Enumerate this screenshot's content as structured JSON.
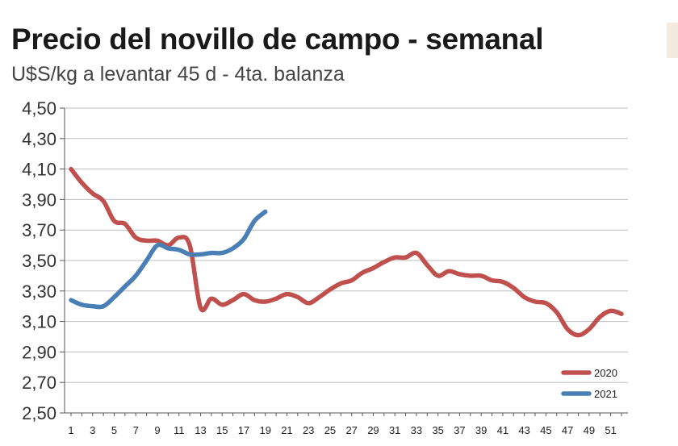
{
  "title": "Precio del novillo de campo - semanal",
  "subtitle": "U$S/kg a levantar 45 d - 4ta. balanza",
  "chart_data": {
    "type": "line",
    "title": "Precio del novillo de campo - semanal",
    "subtitle": "U$S/kg a levantar 45 d - 4ta. balanza",
    "xlabel": "",
    "ylabel": "",
    "ylim": [
      2.5,
      4.5
    ],
    "y_ticks": [
      "4,50",
      "4,30",
      "4,10",
      "3,90",
      "3,70",
      "3,50",
      "3,30",
      "3,10",
      "2,90",
      "2,70",
      "2,50"
    ],
    "x_ticks": [
      "1",
      "3",
      "5",
      "7",
      "9",
      "11",
      "13",
      "15",
      "17",
      "19",
      "21",
      "23",
      "25",
      "27",
      "29",
      "31",
      "33",
      "35",
      "37",
      "39",
      "41",
      "43",
      "45",
      "47",
      "49",
      "51"
    ],
    "grid": "horizontal",
    "legend_position": "bottom-right",
    "series": [
      {
        "name": "2020",
        "color": "#c0504d",
        "x": [
          1,
          2,
          3,
          4,
          5,
          6,
          7,
          8,
          9,
          10,
          11,
          12,
          13,
          14,
          15,
          16,
          17,
          18,
          19,
          20,
          21,
          22,
          23,
          24,
          25,
          26,
          27,
          28,
          29,
          30,
          31,
          32,
          33,
          34,
          35,
          36,
          37,
          38,
          39,
          40,
          41,
          42,
          43,
          44,
          45,
          46,
          47,
          48,
          49,
          50,
          51,
          52
        ],
        "values": [
          4.1,
          4.01,
          3.94,
          3.89,
          3.76,
          3.74,
          3.65,
          3.63,
          3.63,
          3.6,
          3.65,
          3.6,
          3.19,
          3.25,
          3.21,
          3.24,
          3.28,
          3.24,
          3.23,
          3.25,
          3.28,
          3.26,
          3.22,
          3.26,
          3.31,
          3.35,
          3.37,
          3.42,
          3.45,
          3.49,
          3.52,
          3.52,
          3.55,
          3.47,
          3.4,
          3.43,
          3.41,
          3.4,
          3.4,
          3.37,
          3.36,
          3.32,
          3.26,
          3.23,
          3.22,
          3.16,
          3.05,
          3.01,
          3.05,
          3.13,
          3.17,
          3.15
        ]
      },
      {
        "name": "2021",
        "color": "#4a7fb5",
        "x": [
          1,
          2,
          3,
          4,
          5,
          6,
          7,
          8,
          9,
          10,
          11,
          12,
          13,
          14,
          15,
          16,
          17,
          18,
          19
        ],
        "values": [
          3.24,
          3.21,
          3.2,
          3.2,
          3.26,
          3.33,
          3.4,
          3.5,
          3.6,
          3.58,
          3.57,
          3.54,
          3.54,
          3.55,
          3.55,
          3.58,
          3.64,
          3.76,
          3.82
        ]
      }
    ]
  }
}
